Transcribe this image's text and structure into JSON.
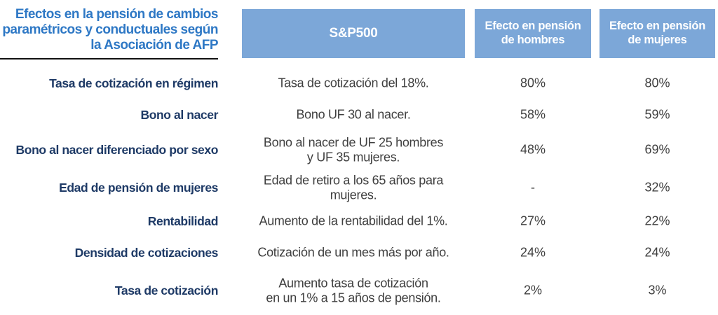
{
  "title": {
    "lines": [
      "Efectos en la pensión de cambios",
      "paramétricos y conductuales según",
      "la Asociación de AFP"
    ]
  },
  "columns": {
    "sp500": "S&P500",
    "hombres": "Efecto en pensión\nde hombres",
    "mujeres": "Efecto en pensión\nde mujeres"
  },
  "rows": [
    {
      "label": "Tasa de cotización en régimen",
      "desc": "Tasa de cotización del 18%.",
      "hombres": "80%",
      "mujeres": "80%"
    },
    {
      "label": "Bono al nacer",
      "desc": "Bono UF 30 al nacer.",
      "hombres": "58%",
      "mujeres": "59%"
    },
    {
      "label": "Bono al nacer diferenciado por sexo",
      "desc": "Bono al nacer de UF 25 hombres\ny UF 35 mujeres.",
      "hombres": "48%",
      "mujeres": "69%"
    },
    {
      "label": "Edad de pensión de mujeres",
      "desc": "Edad de retiro a los 65 años para mujeres.",
      "hombres": "-",
      "mujeres": "32%"
    },
    {
      "label": "Rentabilidad",
      "desc": "Aumento de la rentabilidad del 1%.",
      "hombres": "27%",
      "mujeres": "22%"
    },
    {
      "label": "Densidad de cotizaciones",
      "desc": "Cotización de un mes más por año.",
      "hombres": "24%",
      "mujeres": "24%"
    },
    {
      "label": "Tasa de cotización",
      "desc": "Aumento tasa de cotización\nen un 1% a 15 años de pensión.",
      "hombres": "2%",
      "mujeres": "3%"
    }
  ],
  "colors": {
    "header_bg": "#7CA7D8",
    "title_blue": "#2E78C5",
    "label_navy": "#1E3A66",
    "body_text": "#3F3F3F",
    "underline": "#111111"
  }
}
